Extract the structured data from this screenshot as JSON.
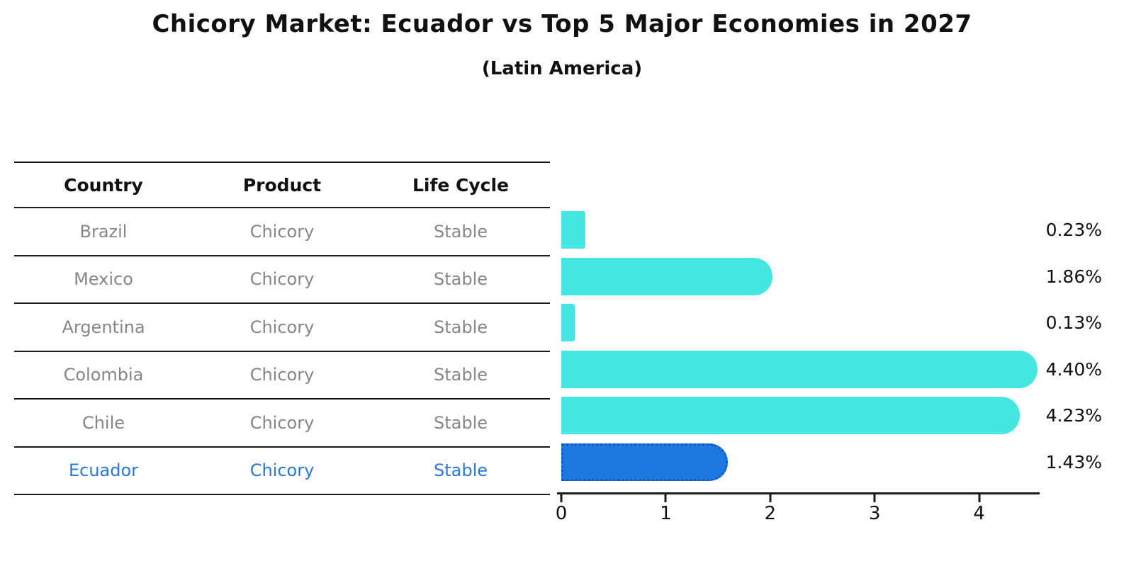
{
  "title": "Chicory Market: Ecuador vs Top 5 Major Economies in 2027",
  "subtitle": "(Latin America)",
  "table": {
    "headers": [
      "Country",
      "Product",
      "Life Cycle"
    ],
    "rows": [
      {
        "country": "Brazil",
        "product": "Chicory",
        "life_cycle": "Stable",
        "highlight": false
      },
      {
        "country": "Mexico",
        "product": "Chicory",
        "life_cycle": "Stable",
        "highlight": false
      },
      {
        "country": "Argentina",
        "product": "Chicory",
        "life_cycle": "Stable",
        "highlight": false
      },
      {
        "country": "Colombia",
        "product": "Chicory",
        "life_cycle": "Stable",
        "highlight": false
      },
      {
        "country": "Chile",
        "product": "Chicory",
        "life_cycle": "Stable",
        "highlight": false
      },
      {
        "country": "Ecuador",
        "product": "Chicory",
        "life_cycle": "Stable",
        "highlight": true
      }
    ]
  },
  "chart_data": {
    "type": "bar",
    "orientation": "horizontal",
    "title": "Chicory Market: Ecuador vs Top 5 Major Economies in 2027",
    "subtitle": "(Latin America)",
    "categories": [
      "Brazil",
      "Mexico",
      "Argentina",
      "Colombia",
      "Chile",
      "Ecuador"
    ],
    "values": [
      0.23,
      1.86,
      0.13,
      4.4,
      4.23,
      1.43
    ],
    "value_labels": [
      "0.23%",
      "1.86%",
      "0.13%",
      "4.40%",
      "4.23%",
      "1.43%"
    ],
    "unit": "%",
    "highlight_index": 5,
    "x_ticks": [
      "0",
      "1",
      "2",
      "3",
      "4"
    ],
    "xlim": [
      0,
      4.58
    ],
    "grid": false,
    "legend": null
  },
  "colors": {
    "bar_color": "#46e6e2",
    "highlight_bar_color": "#1e78e0",
    "highlight_border_color": "#0e59ce",
    "highlight_text_color": "#2878d8",
    "table_text_color": "#868686",
    "heading_text_color": "#111111",
    "line_color": "#1a1a1a"
  }
}
